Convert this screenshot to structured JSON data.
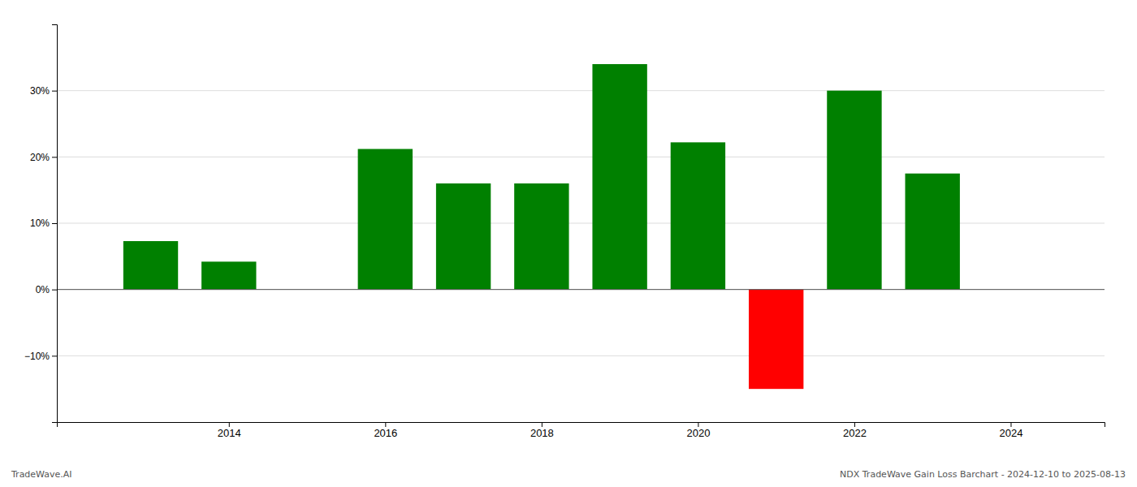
{
  "chart_data": {
    "type": "bar",
    "x": [
      2013,
      2014,
      2016,
      2017,
      2018,
      2019,
      2020,
      2021,
      2022,
      2023
    ],
    "values": [
      7.3,
      4.2,
      21.2,
      16.0,
      16.0,
      34.0,
      22.2,
      -15.0,
      30.0,
      17.5
    ],
    "colors": [
      "#008000",
      "#008000",
      "#008000",
      "#008000",
      "#008000",
      "#008000",
      "#008000",
      "#ff0000",
      "#008000",
      "#008000"
    ],
    "xlim": [
      2011.8,
      2025.2
    ],
    "xticks": [
      2014,
      2016,
      2018,
      2020,
      2022,
      2024
    ],
    "ylim": [
      -20,
      40
    ],
    "yticks": [
      {
        "value": -10,
        "label": "−10%"
      },
      {
        "value": 0,
        "label": "0%"
      },
      {
        "value": 10,
        "label": "10%"
      },
      {
        "value": 20,
        "label": "20%"
      },
      {
        "value": 30,
        "label": "30%"
      }
    ],
    "grid": true,
    "annotations": [
      "TradeWave.AI",
      "NDX TradeWave Gain Loss Barchart - 2024-12-10 to 2025-08-13"
    ]
  }
}
